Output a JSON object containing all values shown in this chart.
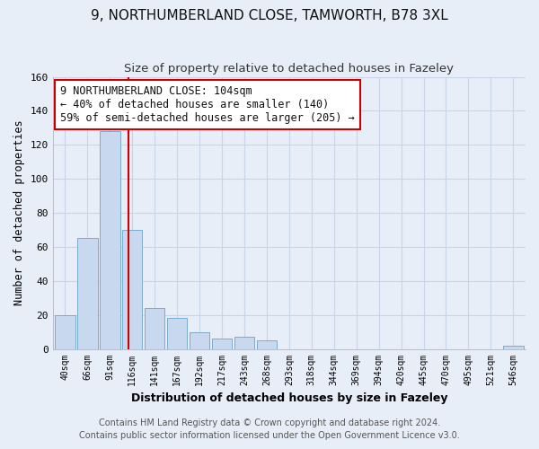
{
  "title": "9, NORTHUMBERLAND CLOSE, TAMWORTH, B78 3XL",
  "subtitle": "Size of property relative to detached houses in Fazeley",
  "xlabel": "Distribution of detached houses by size in Fazeley",
  "ylabel": "Number of detached properties",
  "bar_labels": [
    "40sqm",
    "66sqm",
    "91sqm",
    "116sqm",
    "141sqm",
    "167sqm",
    "192sqm",
    "217sqm",
    "243sqm",
    "268sqm",
    "293sqm",
    "318sqm",
    "344sqm",
    "369sqm",
    "394sqm",
    "420sqm",
    "445sqm",
    "470sqm",
    "495sqm",
    "521sqm",
    "546sqm"
  ],
  "bar_values": [
    20,
    65,
    128,
    70,
    24,
    18,
    10,
    6,
    7,
    5,
    0,
    0,
    0,
    0,
    0,
    0,
    0,
    0,
    0,
    0,
    2
  ],
  "bar_color": "#c8d8ee",
  "bar_edge_color": "#7aabcf",
  "vline_x": 2.85,
  "vline_color": "#cc0000",
  "annotation_text": "9 NORTHUMBERLAND CLOSE: 104sqm\n← 40% of detached houses are smaller (140)\n59% of semi-detached houses are larger (205) →",
  "annotation_box_color": "#ffffff",
  "annotation_box_edge": "#cc0000",
  "ylim": [
    0,
    160
  ],
  "yticks": [
    0,
    20,
    40,
    60,
    80,
    100,
    120,
    140,
    160
  ],
  "footer_line1": "Contains HM Land Registry data © Crown copyright and database right 2024.",
  "footer_line2": "Contains public sector information licensed under the Open Government Licence v3.0.",
  "bg_color": "#e8eef8",
  "plot_bg_color": "#e8eef8",
  "grid_color": "#c8d4e8",
  "title_fontsize": 11,
  "subtitle_fontsize": 9.5,
  "annotation_fontsize": 8.5,
  "footer_fontsize": 7.0
}
